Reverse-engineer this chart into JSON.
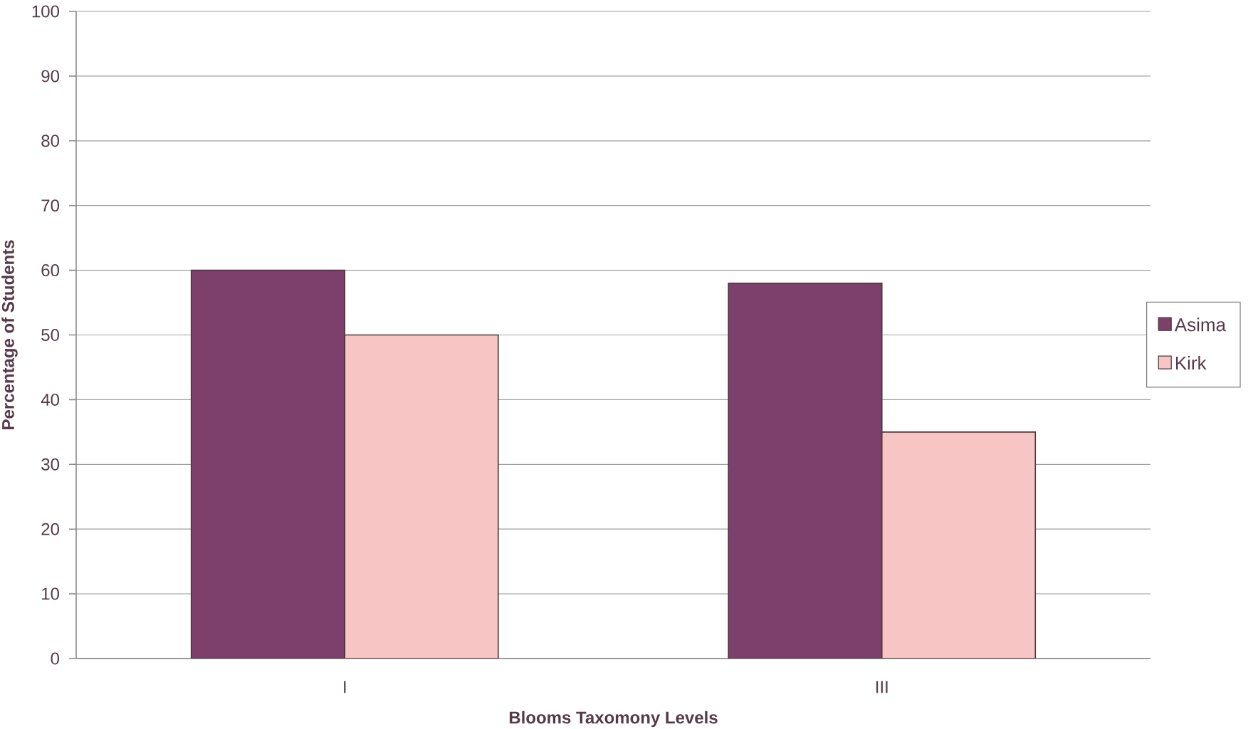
{
  "chart_data": {
    "type": "bar",
    "xlabel": "Blooms Taxomony Levels",
    "ylabel": "Percentage of Students",
    "categories": [
      "I",
      "III"
    ],
    "series": [
      {
        "name": "Asima",
        "color": "#7d3f6c",
        "values": [
          60,
          58
        ]
      },
      {
        "name": "Kirk",
        "color": "#f7c6c4",
        "values": [
          50,
          35
        ]
      }
    ],
    "ylim": [
      0,
      100
    ],
    "yticks": [
      0,
      10,
      20,
      30,
      40,
      50,
      60,
      70,
      80,
      90,
      100
    ],
    "grid": "y",
    "legend": "right"
  }
}
